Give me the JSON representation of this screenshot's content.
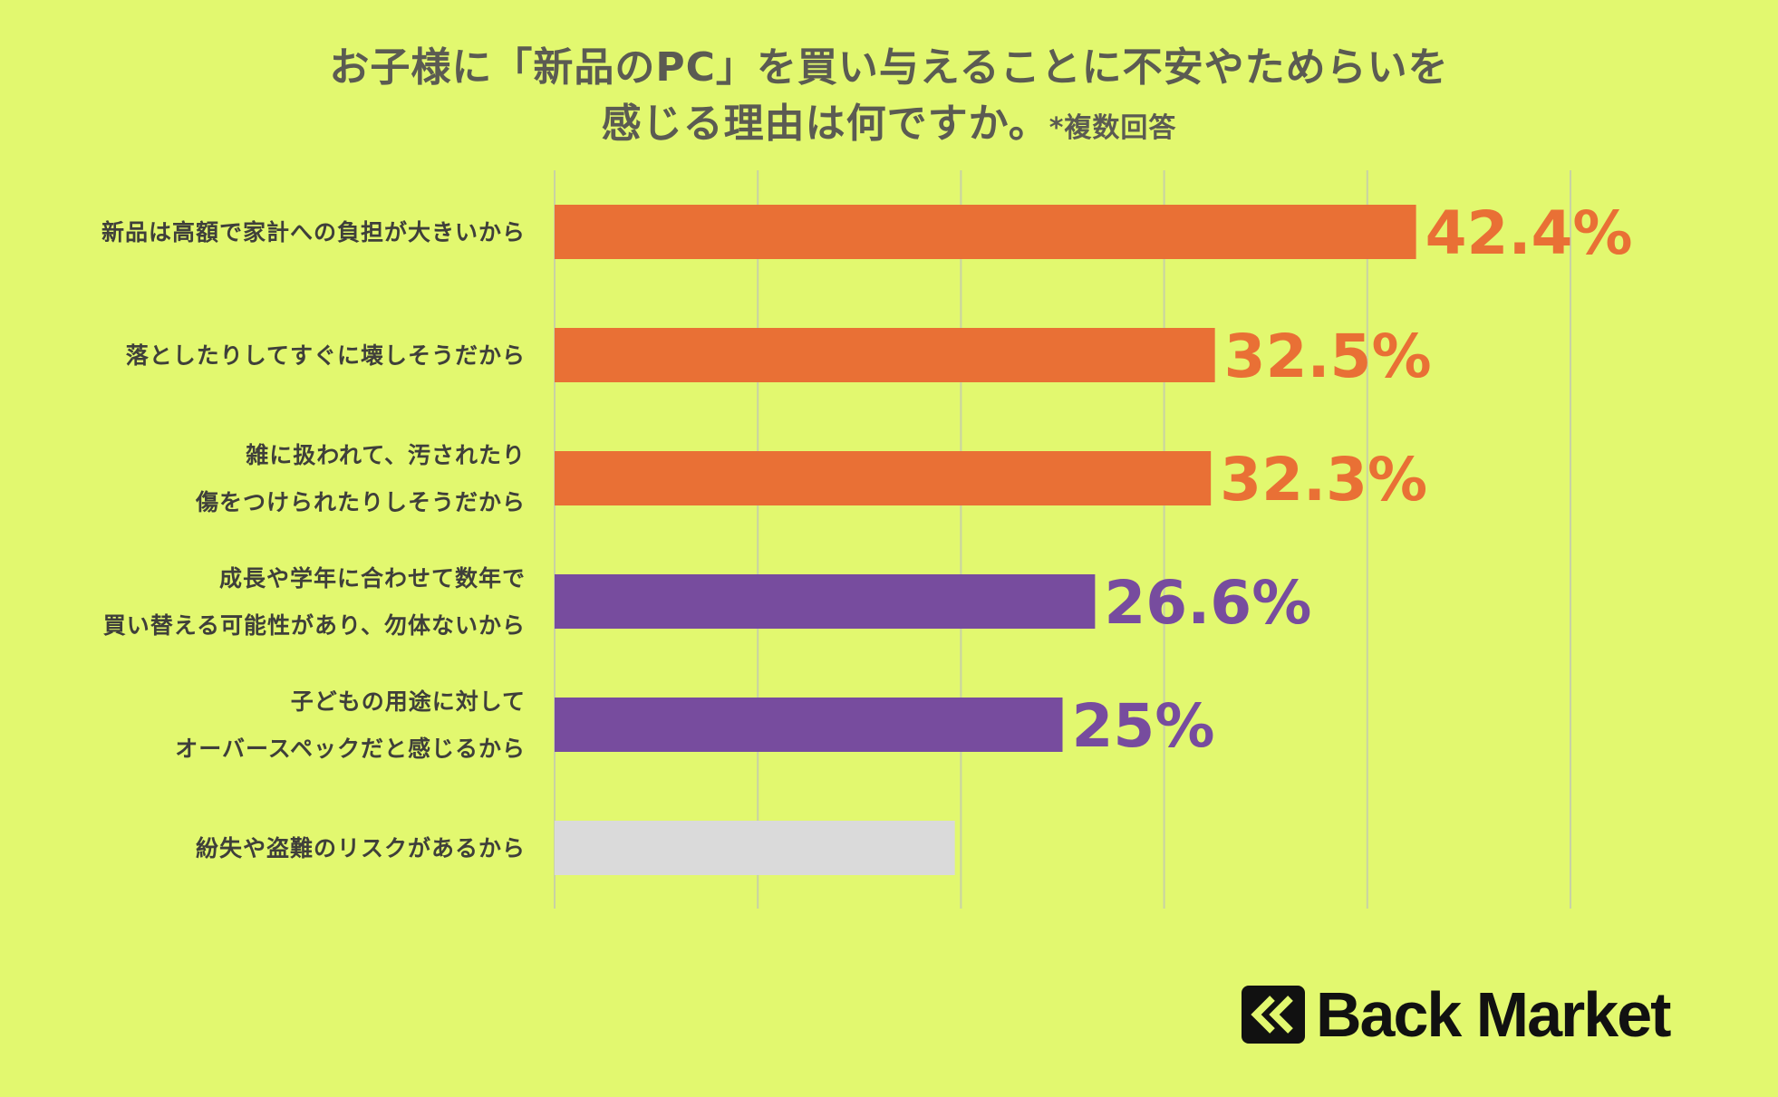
{
  "title": {
    "line1": "お子様に「新品のPC」を買い与えることに不安やためらいを",
    "line2": "感じる理由は何ですか。",
    "note": "*複数回答"
  },
  "brand": {
    "name": "Back Market"
  },
  "colors": {
    "background": "#e2f86f",
    "orange": "#e97035",
    "purple": "#774c9e",
    "gray": "#dadada",
    "grid": "#c8d2a4"
  },
  "chart_data": {
    "type": "bar",
    "orientation": "horizontal",
    "categories": [
      [
        "新品は高額で家計への負担が大きいから"
      ],
      [
        "落としたりしてすぐに壊しそうだから"
      ],
      [
        "雑に扱われて、汚されたり",
        "傷をつけられたりしそうだから"
      ],
      [
        "成長や学年に合わせて数年で",
        "買い替える可能性があり、勿体ないから"
      ],
      [
        "子どもの用途に対して",
        "オーバースペックだと感じるから"
      ],
      [
        "紛失や盗難のリスクがあるから"
      ]
    ],
    "values": [
      42.4,
      32.5,
      32.3,
      26.6,
      25,
      19.7
    ],
    "value_labels": [
      "42.4%",
      "32.5%",
      "32.3%",
      "26.6%",
      "25%",
      ""
    ],
    "bar_colors": [
      "#e97035",
      "#e97035",
      "#e97035",
      "#774c9e",
      "#774c9e",
      "#dadada"
    ],
    "xlim": [
      0,
      50
    ],
    "grid": true,
    "gridlines_every": 10
  }
}
